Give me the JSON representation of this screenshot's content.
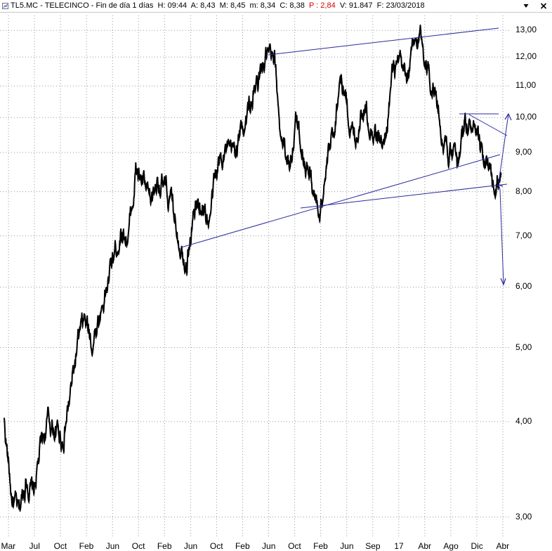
{
  "header": {
    "symbol": "TL5.MC",
    "name": "TELECINCO",
    "period": "Fin de día 1 días",
    "high_label": "H:",
    "high": "09:44",
    "a_label": "A:",
    "a": "8,43",
    "max_label": "M:",
    "max": "8,45",
    "min_label": "m:",
    "min": "8,34",
    "close_label": "C:",
    "close": "8,38",
    "p_label": "P :",
    "p": "2,84",
    "vol_label": "V:",
    "vol": "91.847",
    "date_label": "F:",
    "date": "23/03/2018"
  },
  "colors": {
    "price": "#000000",
    "trendline": "#2a2a9e",
    "grid": "#9a9a9a",
    "p_value": "#d80000"
  },
  "chart_data": {
    "type": "line",
    "title": "TL5.MC - TELECINCO - Fin de día 1 días",
    "yscale": "log",
    "ylim": [
      2.85,
      13.6
    ],
    "y_ticks": [
      "13,00",
      "12,00",
      "11,00",
      "10,00",
      "9,00",
      "8,00",
      "7,00",
      "6,00",
      "5,00",
      "4,00",
      "3,00"
    ],
    "x_ticks": [
      "Mar",
      "Jul",
      "Oct",
      "Feb",
      "Jun",
      "Oct",
      "Feb",
      "Jun",
      "Oct",
      "Feb",
      "Jun",
      "Oct",
      "Feb",
      "Jun",
      "Sep",
      "17",
      "Abr",
      "Ago",
      "Dic",
      "Abr"
    ],
    "grid": "dotted",
    "series": [
      {
        "values": [
          4.0,
          3.2,
          3.0,
          3.4,
          3.2,
          3.7,
          4.0,
          3.9,
          3.8,
          4.3,
          5.0,
          5.4,
          5.1,
          5.5,
          6.0,
          6.6,
          7.2,
          7.0,
          8.5,
          8.2,
          7.6,
          8.4,
          8.0,
          7.6,
          7.0,
          6.6,
          7.5,
          7.8,
          7.3,
          8.4,
          9.2,
          8.8,
          9.3,
          10.0,
          10.6,
          11.3,
          12.0,
          11.5,
          9.3,
          8.8,
          9.9,
          9.0,
          8.3,
          7.5,
          8.5,
          9.5,
          11.5,
          10.2,
          9.3,
          10.5,
          10.0,
          9.5,
          9.1,
          11.3,
          11.5,
          11.2,
          12.2,
          12.8,
          11.6,
          10.8,
          9.4,
          9.0,
          8.6,
          10.0,
          9.6,
          9.0,
          8.7,
          7.9,
          8.4
        ]
      }
    ],
    "annotations": "trendlines"
  }
}
